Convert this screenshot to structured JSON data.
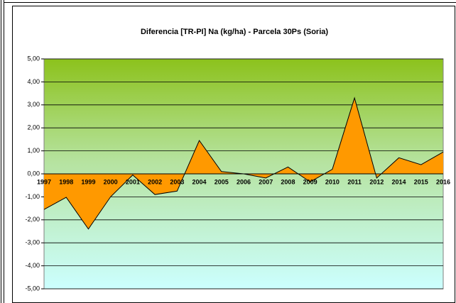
{
  "chart_data": {
    "type": "area",
    "title": "Diferencia [TR-PI] Na (kg/ha) - Parcela 30Ps (Soria)",
    "categories": [
      "1997",
      "1998",
      "1999",
      "2000",
      "2001",
      "2002",
      "2003",
      "2004",
      "2005",
      "2006",
      "2007",
      "2008",
      "2009",
      "2010",
      "2011",
      "2012",
      "2014",
      "2015",
      "2016"
    ],
    "values": [
      -1.55,
      -1.02,
      -2.4,
      -1.0,
      -0.05,
      -0.9,
      -0.75,
      1.45,
      0.1,
      0.0,
      -0.18,
      0.3,
      -0.35,
      0.2,
      3.3,
      -0.18,
      0.7,
      0.4,
      0.95
    ],
    "color": "#ff9900",
    "ylim": [
      -5,
      5
    ],
    "yticks": [
      {
        "value": -5,
        "label": "-5,00"
      },
      {
        "value": -4,
        "label": "-4,00"
      },
      {
        "value": -3,
        "label": "-3,00"
      },
      {
        "value": -2,
        "label": "-2,00"
      },
      {
        "value": -1,
        "label": "-1,00"
      },
      {
        "value": 0,
        "label": "0,00"
      },
      {
        "value": 1,
        "label": "1,00"
      },
      {
        "value": 2,
        "label": "2,00"
      },
      {
        "value": 3,
        "label": "3,00"
      },
      {
        "value": 4,
        "label": "4,00"
      },
      {
        "value": 5,
        "label": "5,00"
      }
    ],
    "grid": true
  }
}
